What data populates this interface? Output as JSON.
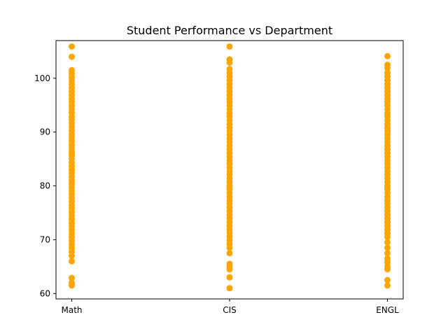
{
  "chart_data": {
    "type": "scatter",
    "title": "Student Performance vs Department",
    "xlabel": "",
    "ylabel": "",
    "ylim": [
      59.0,
      107.0
    ],
    "yticks": [
      60,
      70,
      80,
      90,
      100
    ],
    "grid": false,
    "marker_color": "#ffa500",
    "categories": [
      "Math",
      "CIS",
      "ENGL"
    ],
    "series": [
      {
        "category": "Math",
        "values": [
          105.9,
          104.0,
          101.5,
          100.9,
          100.2,
          99.5,
          98.9,
          98.2,
          97.5,
          96.9,
          96.2,
          95.6,
          94.9,
          94.2,
          93.6,
          92.9,
          92.3,
          91.6,
          90.9,
          90.3,
          89.6,
          89.0,
          88.3,
          87.6,
          87.0,
          86.3,
          85.7,
          85.0,
          84.3,
          83.7,
          83.0,
          82.4,
          81.7,
          81.0,
          80.4,
          79.7,
          79.1,
          78.4,
          77.7,
          77.1,
          76.4,
          75.8,
          75.1,
          74.4,
          73.8,
          73.1,
          72.5,
          71.8,
          71.1,
          70.5,
          69.8,
          69.2,
          68.5,
          67.8,
          67.0,
          66.0,
          62.9,
          62.0,
          61.5
        ]
      },
      {
        "category": "CIS",
        "values": [
          105.9,
          103.5,
          102.9,
          101.7,
          101.0,
          100.3,
          99.6,
          98.9,
          98.3,
          97.6,
          96.9,
          96.2,
          95.6,
          94.9,
          94.2,
          93.5,
          92.9,
          92.2,
          91.5,
          90.8,
          90.2,
          89.5,
          88.8,
          88.1,
          87.5,
          86.8,
          86.1,
          85.4,
          84.8,
          84.1,
          83.4,
          82.7,
          82.1,
          81.4,
          80.7,
          80.0,
          79.4,
          78.7,
          78.0,
          77.3,
          76.7,
          76.0,
          75.3,
          74.6,
          74.0,
          73.3,
          72.6,
          71.9,
          71.3,
          70.6,
          69.9,
          69.2,
          68.5,
          67.5,
          65.5,
          65.0,
          64.5,
          63.0,
          61.0
        ]
      },
      {
        "category": "ENGL",
        "values": [
          104.1,
          102.5,
          101.9,
          101.0,
          100.3,
          99.6,
          98.9,
          98.3,
          97.6,
          96.9,
          96.2,
          95.6,
          94.9,
          94.2,
          93.5,
          92.9,
          92.2,
          91.5,
          90.8,
          90.2,
          89.5,
          88.8,
          88.1,
          87.5,
          86.8,
          86.1,
          85.4,
          84.8,
          84.1,
          83.4,
          82.7,
          82.1,
          81.4,
          80.7,
          80.0,
          79.4,
          78.7,
          78.0,
          77.3,
          76.7,
          76.0,
          75.3,
          74.6,
          74.0,
          73.3,
          72.6,
          71.9,
          71.2,
          70.5,
          69.5,
          68.5,
          67.5,
          66.5,
          65.8,
          65.0,
          64.5,
          62.5,
          61.5
        ]
      }
    ]
  }
}
